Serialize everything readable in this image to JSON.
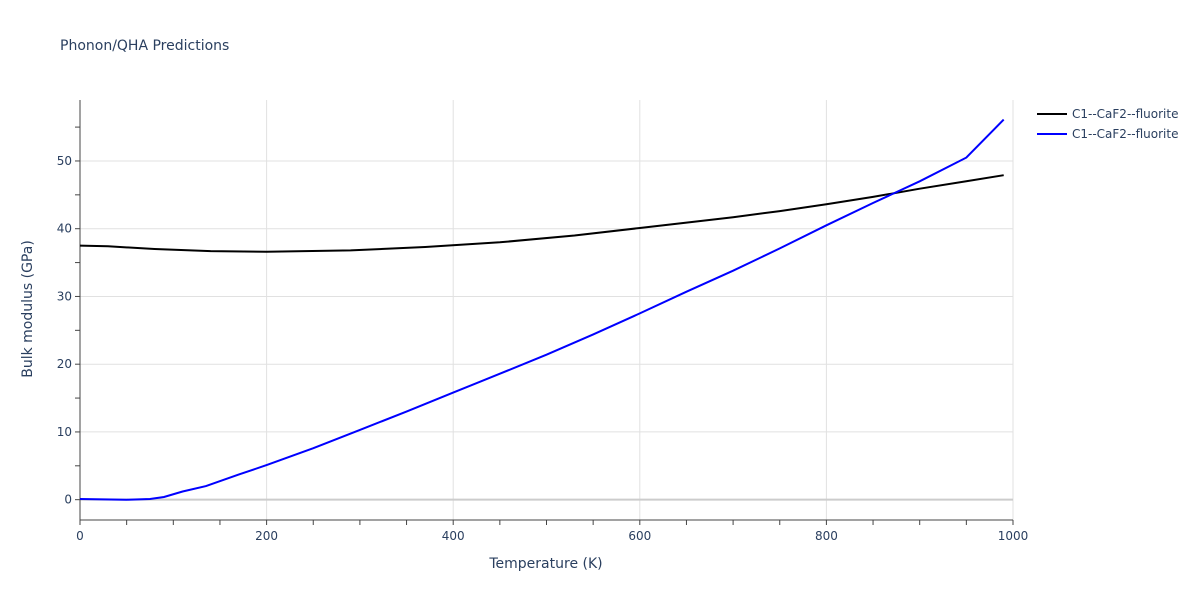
{
  "chart_data": {
    "type": "line",
    "title": "Phonon/QHA Predictions",
    "xlabel": "Temperature (K)",
    "ylabel": "Bulk modulus (GPa)",
    "xlim": [
      0,
      1000
    ],
    "ylim": [
      -3,
      59
    ],
    "xticks": [
      0,
      200,
      400,
      600,
      800,
      1000
    ],
    "yticks": [
      0,
      10,
      20,
      30,
      40,
      50
    ],
    "grid": true,
    "legend_position": "top-right",
    "series": [
      {
        "name": "C1--CaF2--fluorite",
        "color": "#000000",
        "x": [
          0,
          30,
          80,
          140,
          200,
          290,
          370,
          450,
          530,
          600,
          650,
          700,
          750,
          800,
          850,
          900,
          950,
          990
        ],
        "y": [
          37.5,
          37.4,
          37.0,
          36.7,
          36.6,
          36.8,
          37.3,
          38.0,
          39.0,
          40.1,
          40.9,
          41.7,
          42.6,
          43.6,
          44.7,
          45.9,
          47.0,
          47.9
        ]
      },
      {
        "name": "C1--CaF2--fluorite",
        "color": "#0000ff",
        "x": [
          0,
          50,
          75,
          90,
          110,
          135,
          170,
          200,
          250,
          300,
          350,
          400,
          450,
          500,
          550,
          600,
          650,
          700,
          750,
          800,
          850,
          900,
          950,
          990
        ],
        "y": [
          0.1,
          0.0,
          0.1,
          0.4,
          1.2,
          2.0,
          3.7,
          5.1,
          7.6,
          10.3,
          13.0,
          15.8,
          18.6,
          21.4,
          24.4,
          27.5,
          30.7,
          33.8,
          37.1,
          40.5,
          43.8,
          47.0,
          50.5,
          56.1
        ]
      }
    ]
  }
}
